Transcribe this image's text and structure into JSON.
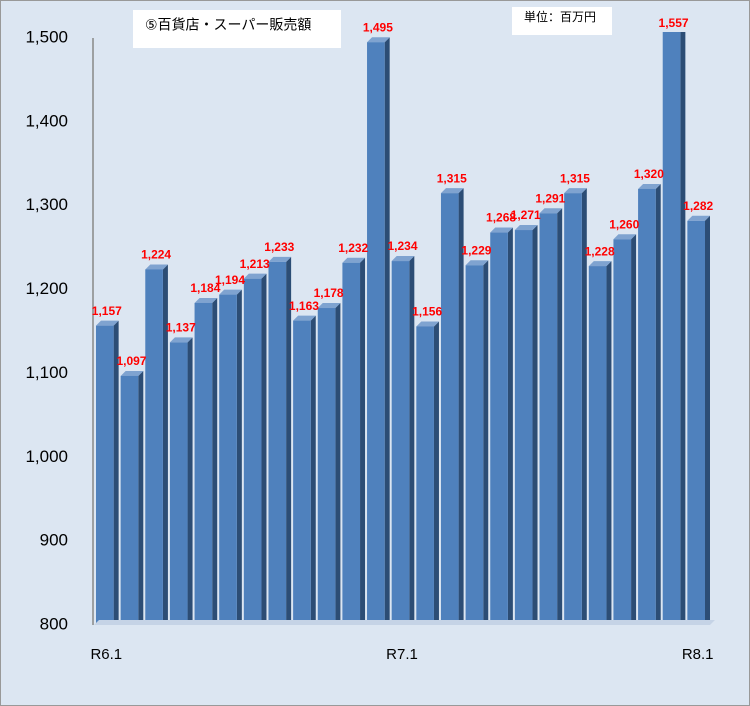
{
  "chart_data": {
    "type": "bar",
    "title": "⑤百貨店・スーパー販売額",
    "unit_label": "単位：百万円",
    "categories": [
      "R6.1",
      null,
      null,
      null,
      null,
      null,
      null,
      null,
      null,
      null,
      null,
      null,
      "R7.1",
      null,
      null,
      null,
      null,
      null,
      null,
      null,
      null,
      null,
      null,
      null,
      "R8.1"
    ],
    "values": [
      1157,
      1097,
      1224,
      1137,
      1184,
      1194,
      1213,
      1233,
      1163,
      1178,
      1232,
      1495,
      1234,
      1156,
      1315,
      1229,
      1268,
      1271,
      1291,
      1315,
      1228,
      1260,
      1320,
      1557,
      1282
    ],
    "value_labels": [
      "1,157",
      "1,097",
      "1,224",
      "1,137",
      "1,184",
      "1,194",
      "1,213",
      "1,233",
      "1,163",
      "1,178",
      "1,232",
      "1,495",
      "1,234",
      "1,156",
      "1,315",
      "1,229",
      "1,268",
      "1,271",
      "1,291",
      "1,315",
      "1,228",
      "1,260",
      "1,320",
      "1,557",
      "1,282"
    ],
    "color": "#4f81bd",
    "ylim": [
      800,
      1500
    ],
    "yticks": [
      800,
      900,
      {
        "value": 1000,
        "label": "1,000"
      },
      {
        "value": 1100,
        "label": "1,100"
      },
      {
        "value": 1200,
        "label": "1,200"
      },
      {
        "value": 1300,
        "label": "1,300"
      },
      {
        "value": 1400,
        "label": "1,400"
      },
      {
        "value": 1500,
        "label": "1,500"
      }
    ]
  }
}
